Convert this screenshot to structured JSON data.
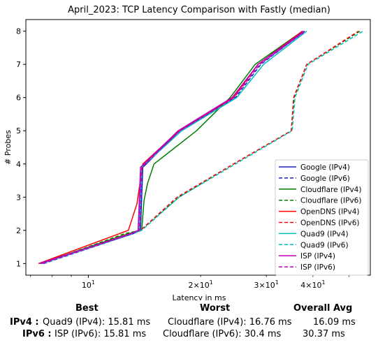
{
  "chart_data": {
    "type": "line",
    "title": "April_2023: TCP Latency Comparison with Fastly (median)",
    "xlabel": "Latency in ms",
    "ylabel": "# Probes",
    "xscale": "log",
    "xlim": [
      6.8,
      57
    ],
    "ylim": [
      0.65,
      8.35
    ],
    "yticks": [
      1,
      2,
      3,
      4,
      5,
      6,
      7,
      8
    ],
    "xticks_major": [
      10
    ],
    "xtick_labels_major": [
      "10^1"
    ],
    "xticks_minor": [
      20,
      30,
      40
    ],
    "xtick_labels_minor": [
      "2×10^1",
      "3×10^1",
      "4×10^1"
    ],
    "grid": false,
    "legend_position": "lower-right",
    "series": [
      {
        "name": "Google (IPv4)",
        "color": "#1f1fbf",
        "dash": "solid",
        "points": [
          [
            7.45,
            1
          ],
          [
            13.2,
            1.9
          ],
          [
            13.8,
            2
          ],
          [
            14.0,
            3.9
          ],
          [
            14.3,
            4
          ],
          [
            17.5,
            5
          ],
          [
            24.5,
            6
          ],
          [
            28.5,
            7
          ],
          [
            37.5,
            8
          ]
        ]
      },
      {
        "name": "Google (IPv6)",
        "color": "#1f1fbf",
        "dash": "dashed",
        "points": [
          [
            7.6,
            1
          ],
          [
            13.0,
            1.9
          ],
          [
            13.6,
            2
          ],
          [
            13.9,
            3.9
          ],
          [
            14.2,
            4
          ],
          [
            17.6,
            5
          ],
          [
            24.8,
            6
          ],
          [
            29,
            7
          ],
          [
            38,
            8
          ]
        ]
      },
      {
        "name": "Cloudflare (IPv4)",
        "color": "#008000",
        "dash": "solid",
        "points": [
          [
            7.4,
            1
          ],
          [
            12.8,
            1.9
          ],
          [
            13.9,
            2
          ],
          [
            14.1,
            2.9
          ],
          [
            14.4,
            3.4
          ],
          [
            15.0,
            4
          ],
          [
            19.5,
            5
          ],
          [
            24.0,
            6
          ],
          [
            28.0,
            7
          ],
          [
            37.5,
            8
          ]
        ]
      },
      {
        "name": "Cloudflare (IPv6)",
        "color": "#008000",
        "dash": "dashed",
        "points": [
          [
            7.5,
            1
          ],
          [
            12.5,
            1.9
          ],
          [
            13.8,
            2
          ],
          [
            17.5,
            3
          ],
          [
            24.5,
            4
          ],
          [
            35.0,
            5
          ],
          [
            35.6,
            6
          ],
          [
            38.5,
            7
          ],
          [
            53.5,
            8
          ]
        ]
      },
      {
        "name": "OpenDNS (IPv4)",
        "color": "#ff0000",
        "dash": "solid",
        "points": [
          [
            7.35,
            1
          ],
          [
            12.8,
            2
          ],
          [
            13.5,
            2.8
          ],
          [
            14.0,
            4
          ],
          [
            17.5,
            5
          ],
          [
            24.5,
            6
          ],
          [
            28.5,
            7
          ],
          [
            37.5,
            8
          ]
        ]
      },
      {
        "name": "OpenDNS (IPv6)",
        "color": "#ff0000",
        "dash": "dashed",
        "points": [
          [
            7.5,
            1
          ],
          [
            12.9,
            1.9
          ],
          [
            13.8,
            2
          ],
          [
            17.3,
            3
          ],
          [
            24.5,
            4
          ],
          [
            35.0,
            5
          ],
          [
            35.5,
            6
          ],
          [
            38.5,
            7
          ],
          [
            53.0,
            8
          ]
        ]
      },
      {
        "name": "Quad9 (IPv4)",
        "color": "#00bfbf",
        "dash": "solid",
        "points": [
          [
            7.5,
            1
          ],
          [
            13.0,
            1.9
          ],
          [
            13.7,
            2
          ],
          [
            13.9,
            3.9
          ],
          [
            14.2,
            4
          ],
          [
            17.8,
            5
          ],
          [
            25.0,
            6
          ],
          [
            29.5,
            7
          ],
          [
            38.5,
            8
          ]
        ]
      },
      {
        "name": "Quad9 (IPv6)",
        "color": "#00bfbf",
        "dash": "dashed",
        "points": [
          [
            7.6,
            1
          ],
          [
            13.2,
            1.9
          ],
          [
            13.9,
            2
          ],
          [
            17.5,
            3
          ],
          [
            24.8,
            4
          ],
          [
            35.2,
            5
          ],
          [
            35.8,
            6
          ],
          [
            38.8,
            7
          ],
          [
            54.5,
            8
          ]
        ]
      },
      {
        "name": "ISP (IPv4)",
        "color": "#bf00bf",
        "dash": "solid",
        "points": [
          [
            7.4,
            1
          ],
          [
            13.0,
            1.9
          ],
          [
            13.6,
            2
          ],
          [
            13.8,
            3.9
          ],
          [
            14.1,
            4
          ],
          [
            17.4,
            5
          ],
          [
            24.3,
            6
          ],
          [
            28.5,
            7
          ],
          [
            37.8,
            8
          ]
        ]
      },
      {
        "name": "ISP (IPv6)",
        "color": "#bf00bf",
        "dash": "dashed",
        "points": [
          [
            7.55,
            1
          ],
          [
            13.1,
            1.9
          ],
          [
            13.7,
            2
          ],
          [
            13.9,
            3.9
          ],
          [
            14.2,
            4
          ],
          [
            17.6,
            5
          ],
          [
            24.6,
            6
          ],
          [
            28.8,
            7
          ],
          [
            38.2,
            8
          ]
        ]
      }
    ]
  },
  "summary": {
    "headers": {
      "best": "Best",
      "worst": "Worst",
      "avg": "Overall Avg"
    },
    "rows": [
      {
        "label": "IPv4 :",
        "best": "Quad9 (IPv4): 15.81 ms",
        "worst": "Cloudflare (IPv4): 16.76 ms",
        "avg": "16.09 ms"
      },
      {
        "label": "IPv6 :",
        "best": "ISP (IPv6): 15.81 ms",
        "worst": "Cloudflare (IPv6): 30.4 ms",
        "avg": "30.37 ms"
      }
    ]
  }
}
